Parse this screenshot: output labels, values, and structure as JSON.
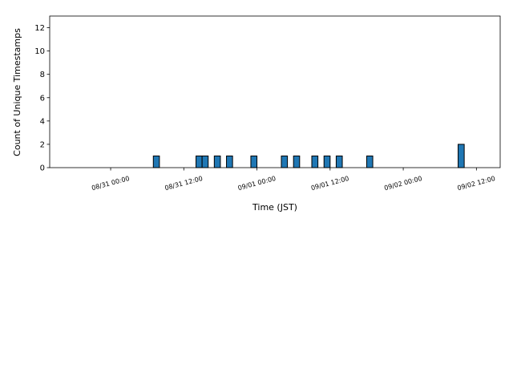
{
  "chart_data": {
    "type": "histogram",
    "xlabel": "Time (JST)",
    "ylabel": "Count of Unique Timestamps",
    "bins": [
      "08/30 15:00",
      "08/30 16:00",
      "08/30 17:00",
      "08/30 18:00",
      "08/30 19:00",
      "08/30 20:00",
      "08/30 21:00",
      "08/30 22:00",
      "08/30 23:00",
      "08/31 00:00",
      "08/31 01:00",
      "08/31 02:00",
      "08/31 03:00",
      "08/31 04:00",
      "08/31 05:00",
      "08/31 06:00",
      "08/31 07:00",
      "08/31 08:00",
      "08/31 09:00",
      "08/31 10:00",
      "08/31 11:00",
      "08/31 12:00",
      "08/31 13:00",
      "08/31 14:00",
      "08/31 15:00",
      "08/31 16:00",
      "08/31 17:00",
      "08/31 18:00",
      "08/31 19:00",
      "08/31 20:00",
      "08/31 21:00",
      "08/31 22:00",
      "08/31 23:00",
      "09/01 00:00",
      "09/01 01:00",
      "09/01 02:00",
      "09/01 03:00",
      "09/01 04:00",
      "09/01 05:00",
      "09/01 06:00",
      "09/01 07:00",
      "09/01 08:00",
      "09/01 09:00",
      "09/01 10:00",
      "09/01 11:00",
      "09/01 12:00",
      "09/01 13:00",
      "09/01 14:00",
      "09/01 15:00",
      "09/01 16:00",
      "09/01 17:00",
      "09/01 18:00",
      "09/01 19:00",
      "09/01 20:00",
      "09/01 21:00",
      "09/01 22:00",
      "09/01 23:00",
      "09/02 00:00",
      "09/02 01:00",
      "09/02 02:00",
      "09/02 03:00",
      "09/02 04:00",
      "09/02 05:00",
      "09/02 06:00",
      "09/02 07:00",
      "09/02 08:00",
      "09/02 09:00",
      "09/02 10:00",
      "09/02 11:00",
      "09/02 12:00",
      "09/02 13:00",
      "09/02 14:00"
    ],
    "values": [
      0,
      0,
      0,
      0,
      0,
      0,
      0,
      0,
      0,
      0,
      0,
      0,
      0,
      0,
      0,
      0,
      1,
      0,
      0,
      0,
      0,
      0,
      0,
      1,
      1,
      0,
      1,
      0,
      1,
      0,
      0,
      0,
      1,
      0,
      0,
      0,
      0,
      1,
      0,
      1,
      0,
      0,
      1,
      0,
      1,
      0,
      1,
      0,
      0,
      0,
      0,
      1,
      0,
      0,
      0,
      0,
      0,
      0,
      0,
      0,
      0,
      0,
      0,
      0,
      0,
      0,
      2,
      0,
      0,
      0,
      0
    ],
    "color": "#1f77b4",
    "xlim": [
      "08/30 14:00",
      "09/02 15:54"
    ],
    "xticks": [
      "08/31 00:00",
      "08/31 12:00",
      "09/01 00:00",
      "09/01 12:00",
      "09/02 00:00",
      "09/02 12:00"
    ],
    "ylim": [
      0,
      13
    ],
    "yticks": [
      0,
      2,
      4,
      6,
      8,
      10,
      12
    ]
  }
}
